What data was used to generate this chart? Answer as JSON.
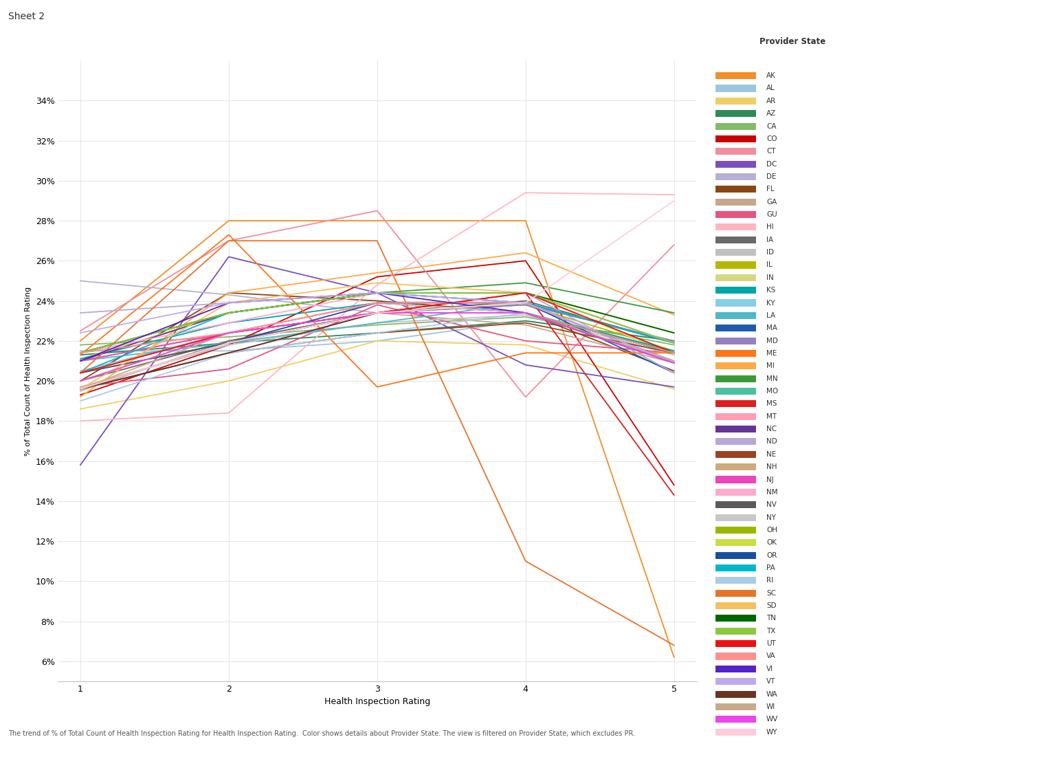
{
  "title": "Sheet 2",
  "xlabel": "Health Inspection Rating",
  "ylabel": "% of Total Count of Health Inspection Rating",
  "caption": "The trend of % of Total Count of Health Inspection Rating for Health Inspection Rating.  Color shows details about Provider State. The view is filtered on Provider State, which excludes PR.",
  "x_values": [
    1,
    2,
    3,
    4,
    5
  ],
  "yticks": [
    0.06,
    0.08,
    0.1,
    0.12,
    0.14,
    0.16,
    0.18,
    0.2,
    0.22,
    0.24,
    0.26,
    0.28,
    0.3,
    0.32,
    0.34
  ],
  "ylim": [
    0.05,
    0.36
  ],
  "states": {
    "AK": {
      "color": "#F28E2B",
      "data": [
        0.22,
        0.28,
        0.28,
        0.28,
        0.062
      ]
    },
    "AL": {
      "color": "#9DC6E0",
      "data": [
        0.215,
        0.215,
        0.22,
        0.23,
        0.22
      ]
    },
    "AR": {
      "color": "#F1CE63",
      "data": [
        0.186,
        0.2,
        0.22,
        0.218,
        0.196
      ]
    },
    "AZ": {
      "color": "#2E8B57",
      "data": [
        0.213,
        0.219,
        0.224,
        0.23,
        0.22
      ]
    },
    "CA": {
      "color": "#86B96A",
      "data": [
        0.218,
        0.222,
        0.228,
        0.232,
        0.218
      ]
    },
    "CO": {
      "color": "#CC0000",
      "data": [
        0.193,
        0.218,
        0.252,
        0.26,
        0.148
      ]
    },
    "CT": {
      "color": "#F18D9E",
      "data": [
        0.225,
        0.27,
        0.285,
        0.192,
        0.268
      ]
    },
    "DC": {
      "color": "#7B4FBF",
      "data": [
        0.158,
        0.262,
        0.244,
        0.208,
        0.197
      ]
    },
    "DE": {
      "color": "#B8B0D0",
      "data": [
        0.25,
        0.243,
        0.234,
        0.238,
        0.21
      ]
    },
    "FL": {
      "color": "#8B4513",
      "data": [
        0.2,
        0.244,
        0.24,
        0.234,
        0.205
      ]
    },
    "GA": {
      "color": "#C5A68E",
      "data": [
        0.195,
        0.22,
        0.234,
        0.228,
        0.209
      ]
    },
    "GU": {
      "color": "#E75480",
      "data": [
        0.197,
        0.206,
        0.238,
        0.22,
        0.214
      ]
    },
    "HI": {
      "color": "#FFB6C1",
      "data": [
        0.18,
        0.184,
        0.248,
        0.294,
        0.293
      ]
    },
    "IA": {
      "color": "#696969",
      "data": [
        0.2,
        0.22,
        0.234,
        0.24,
        0.219
      ]
    },
    "ID": {
      "color": "#C0C0C0",
      "data": [
        0.197,
        0.218,
        0.229,
        0.233,
        0.213
      ]
    },
    "IL": {
      "color": "#B5B800",
      "data": [
        0.21,
        0.224,
        0.234,
        0.238,
        0.215
      ]
    },
    "IN": {
      "color": "#D4D980",
      "data": [
        0.211,
        0.234,
        0.244,
        0.244,
        0.213
      ]
    },
    "KS": {
      "color": "#00A5A5",
      "data": [
        0.211,
        0.229,
        0.239,
        0.234,
        0.215
      ]
    },
    "KY": {
      "color": "#87CEEB",
      "data": [
        0.205,
        0.224,
        0.234,
        0.234,
        0.21
      ]
    },
    "LA": {
      "color": "#4FB8C8",
      "data": [
        0.21,
        0.219,
        0.229,
        0.239,
        0.219
      ]
    },
    "MA": {
      "color": "#1F5BAD",
      "data": [
        0.204,
        0.219,
        0.234,
        0.239,
        0.204
      ]
    },
    "MD": {
      "color": "#9580C4",
      "data": [
        0.196,
        0.214,
        0.234,
        0.238,
        0.22
      ]
    },
    "ME": {
      "color": "#FF7518",
      "data": [
        0.213,
        0.273,
        0.197,
        0.214,
        0.214
      ]
    },
    "MI": {
      "color": "#FFAA44",
      "data": [
        0.192,
        0.244,
        0.254,
        0.264,
        0.233
      ]
    },
    "MN": {
      "color": "#3A9A3A",
      "data": [
        0.214,
        0.234,
        0.244,
        0.249,
        0.234
      ]
    },
    "MO": {
      "color": "#4DC0A0",
      "data": [
        0.214,
        0.234,
        0.244,
        0.244,
        0.219
      ]
    },
    "MS": {
      "color": "#DD2020",
      "data": [
        0.204,
        0.224,
        0.234,
        0.244,
        0.143
      ]
    },
    "MT": {
      "color": "#FF9EB5",
      "data": [
        0.21,
        0.224,
        0.239,
        0.239,
        0.209
      ]
    },
    "NC": {
      "color": "#663399",
      "data": [
        0.21,
        0.234,
        0.244,
        0.239,
        0.209
      ]
    },
    "ND": {
      "color": "#B8A8D8",
      "data": [
        0.234,
        0.239,
        0.244,
        0.244,
        0.204
      ]
    },
    "NE": {
      "color": "#9B4520",
      "data": [
        0.196,
        0.214,
        0.224,
        0.229,
        0.214
      ]
    },
    "NH": {
      "color": "#CDAA7D",
      "data": [
        0.196,
        0.224,
        0.234,
        0.234,
        0.21
      ]
    },
    "NJ": {
      "color": "#EE44BB",
      "data": [
        0.21,
        0.224,
        0.239,
        0.234,
        0.209
      ]
    },
    "NM": {
      "color": "#FFAACC",
      "data": [
        0.214,
        0.229,
        0.244,
        0.244,
        0.219
      ]
    },
    "NV": {
      "color": "#5A5A5A",
      "data": [
        0.204,
        0.219,
        0.234,
        0.234,
        0.209
      ]
    },
    "NY": {
      "color": "#C8C8C8",
      "data": [
        0.204,
        0.224,
        0.239,
        0.234,
        0.214
      ]
    },
    "OH": {
      "color": "#9AB700",
      "data": [
        0.214,
        0.234,
        0.244,
        0.244,
        0.224
      ]
    },
    "OK": {
      "color": "#CCDC44",
      "data": [
        0.2,
        0.224,
        0.234,
        0.239,
        0.219
      ]
    },
    "OR": {
      "color": "#1A4EA0",
      "data": [
        0.196,
        0.219,
        0.239,
        0.239,
        0.219
      ]
    },
    "PA": {
      "color": "#00B8CC",
      "data": [
        0.204,
        0.234,
        0.244,
        0.239,
        0.219
      ]
    },
    "RI": {
      "color": "#AACCE8",
      "data": [
        0.19,
        0.214,
        0.224,
        0.234,
        0.214
      ]
    },
    "SC": {
      "color": "#E8742A",
      "data": [
        0.204,
        0.27,
        0.27,
        0.11,
        0.068
      ]
    },
    "SD": {
      "color": "#F5C060",
      "data": [
        0.196,
        0.239,
        0.249,
        0.244,
        0.219
      ]
    },
    "TN": {
      "color": "#006600",
      "data": [
        0.214,
        0.234,
        0.244,
        0.244,
        0.224
      ]
    },
    "TX": {
      "color": "#8CC840",
      "data": [
        0.214,
        0.234,
        0.244,
        0.244,
        0.219
      ]
    },
    "UT": {
      "color": "#EE1111",
      "data": [
        0.204,
        0.224,
        0.234,
        0.244,
        0.214
      ]
    },
    "VA": {
      "color": "#FF9090",
      "data": [
        0.214,
        0.224,
        0.239,
        0.239,
        0.209
      ]
    },
    "VI": {
      "color": "#5522CC",
      "data": [
        0.21,
        0.239,
        0.244,
        0.234,
        0.214
      ]
    },
    "VT": {
      "color": "#C0AAEE",
      "data": [
        0.224,
        0.239,
        0.244,
        0.239,
        0.209
      ]
    },
    "WA": {
      "color": "#6B3322",
      "data": [
        0.196,
        0.214,
        0.234,
        0.234,
        0.214
      ]
    },
    "WI": {
      "color": "#C8AA8A",
      "data": [
        0.196,
        0.219,
        0.234,
        0.234,
        0.214
      ]
    },
    "WV": {
      "color": "#EE44EE",
      "data": [
        0.2,
        0.224,
        0.234,
        0.234,
        0.209
      ]
    },
    "WY": {
      "color": "#FFCCDD",
      "data": [
        0.196,
        0.219,
        0.234,
        0.239,
        0.29
      ]
    }
  }
}
